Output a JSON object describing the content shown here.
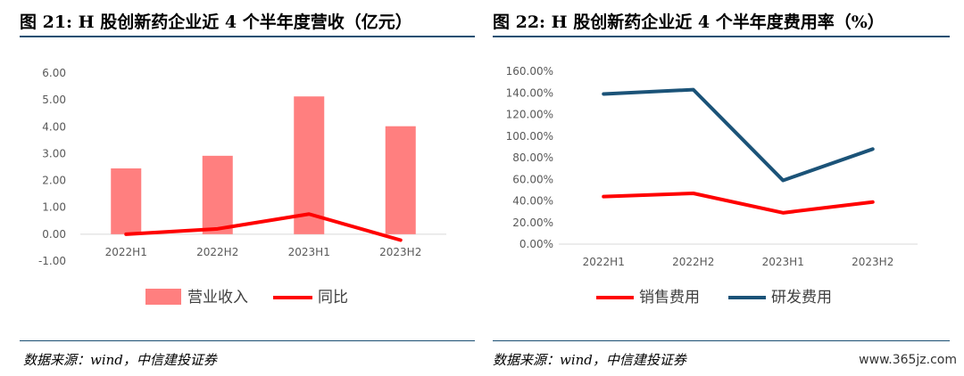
{
  "left": {
    "title": "图 21: H 股创新药企业近 4 个半年度营收（亿元）",
    "source": "数据来源：wind，中信建投证券",
    "chart_data": {
      "type": "bar",
      "categories": [
        "2022H1",
        "2022H2",
        "2023H1",
        "2023H2"
      ],
      "series": [
        {
          "name": "营业收入",
          "type": "bar",
          "color": "#ff7f7f",
          "values": [
            2.45,
            2.92,
            5.13,
            4.02
          ]
        },
        {
          "name": "同比",
          "type": "line",
          "color": "#ff0000",
          "values": [
            0.0,
            0.2,
            0.75,
            -0.22
          ]
        }
      ],
      "ylim": [
        -1,
        6
      ],
      "yticks": [
        "-1.00",
        "0.00",
        "1.00",
        "2.00",
        "3.00",
        "4.00",
        "5.00",
        "6.00"
      ],
      "grid": false,
      "legend": "bottom"
    }
  },
  "right": {
    "title": "图 22: H 股创新药企业近 4 个半年度费用率（%）",
    "source": "数据来源：wind，中信建投证券",
    "chart_data": {
      "type": "line",
      "categories": [
        "2022H1",
        "2022H2",
        "2023H1",
        "2023H2"
      ],
      "series": [
        {
          "name": "销售费用",
          "color": "#ff0000",
          "values": [
            44,
            47,
            29,
            39
          ]
        },
        {
          "name": "研发费用",
          "color": "#1b5378",
          "values": [
            139,
            143,
            59,
            88
          ]
        }
      ],
      "ylim": [
        0,
        160
      ],
      "yticks": [
        "0.00%",
        "20.00%",
        "40.00%",
        "60.00%",
        "80.00%",
        "100.00%",
        "120.00%",
        "140.00%",
        "160.00%"
      ],
      "grid": false,
      "legend": "bottom"
    }
  },
  "watermark": "www.365jz.com"
}
